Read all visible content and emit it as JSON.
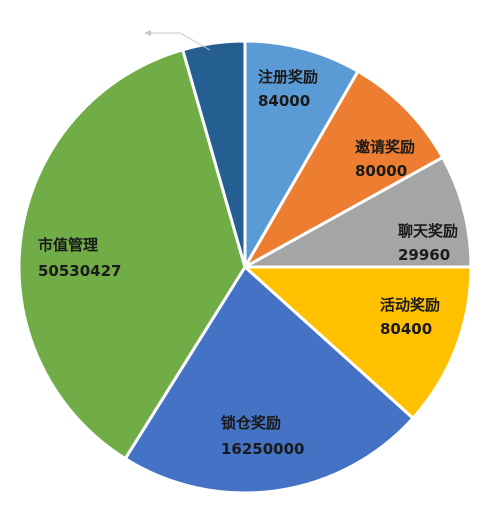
{
  "chart_data": {
    "type": "pie",
    "title": "",
    "start_angle_deg": 0,
    "slices": [
      {
        "label": "注册奖励",
        "value": "84000",
        "sweep": 30,
        "color": "#5B9BD5"
      },
      {
        "label": "邀请奖励",
        "value": "80000",
        "sweep": 31,
        "color": "#ED7D31"
      },
      {
        "label": "聊天奖励",
        "value": "29960",
        "sweep": 29,
        "color": "#A5A5A5"
      },
      {
        "label": "活动奖励",
        "value": "80400",
        "sweep": 42,
        "color": "#FFC000"
      },
      {
        "label": "锁仓奖励",
        "value": "16250000",
        "sweep": 80,
        "color": "#4472C4"
      },
      {
        "label": "市值管理",
        "value": "50530427",
        "sweep": 132,
        "color": "#70AD47"
      },
      {
        "label": "",
        "value": "",
        "sweep": 16,
        "color": "#255E91"
      }
    ],
    "faint_label": {
      "label": "",
      "value": ""
    }
  }
}
